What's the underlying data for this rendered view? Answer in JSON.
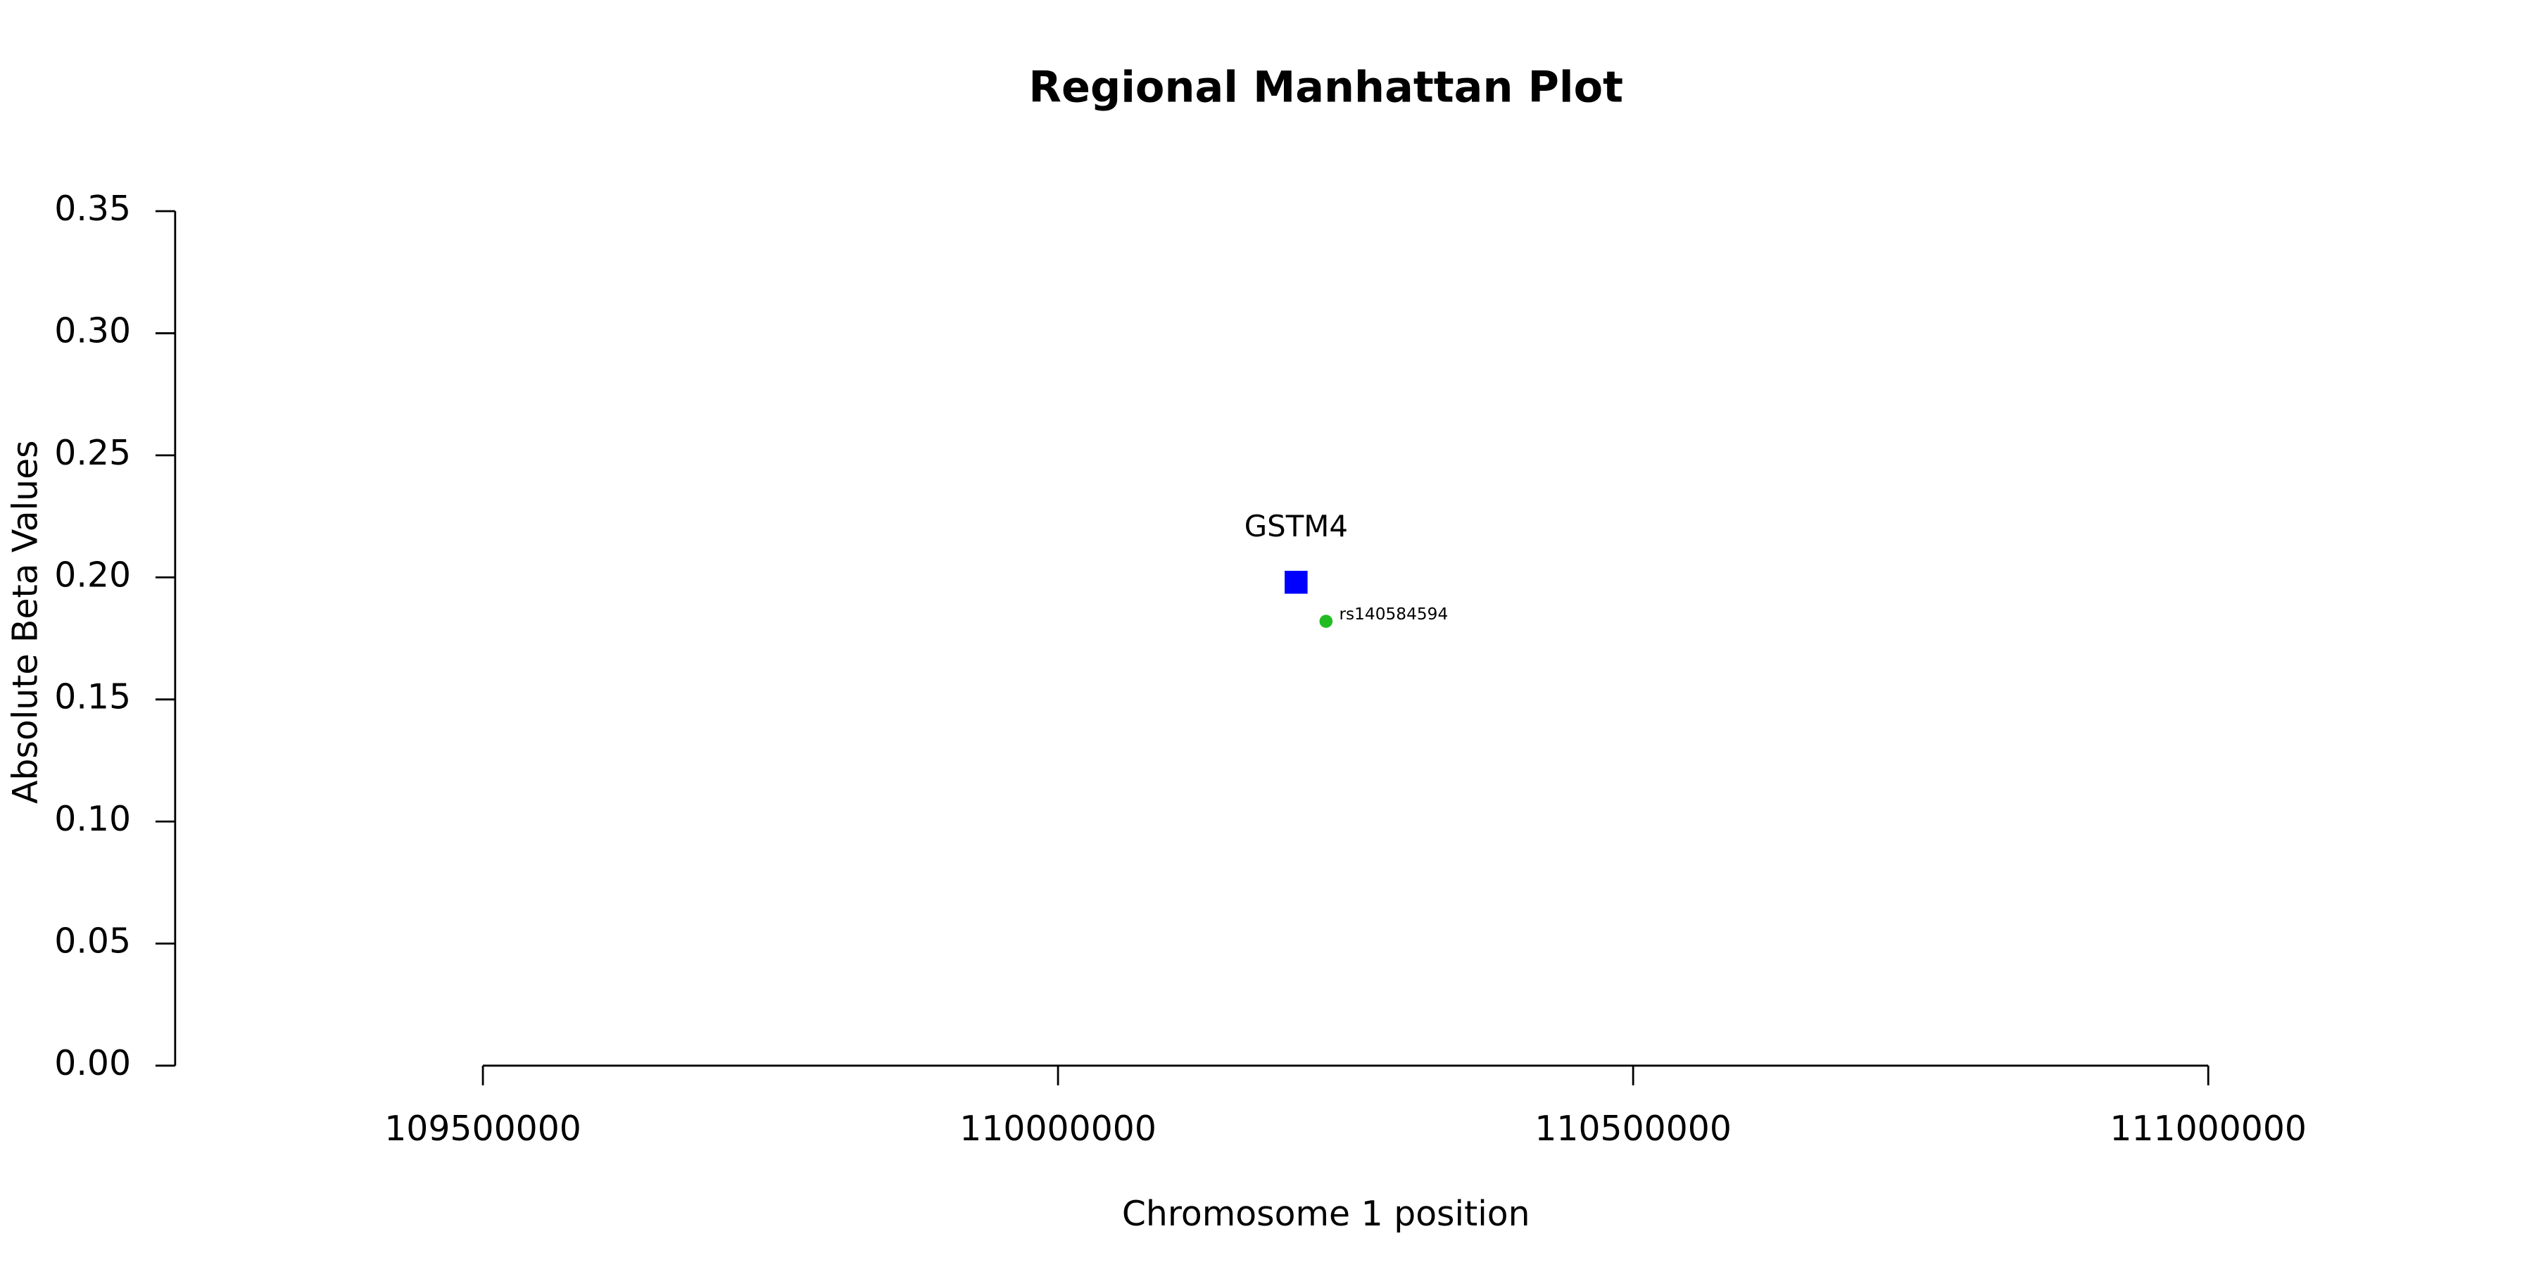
{
  "chart_data": {
    "type": "scatter",
    "title": "Regional Manhattan Plot",
    "x_label": "Chromosome 1 position",
    "y_label": "Absolute Beta Values",
    "xlim": [
      109500000,
      111000000
    ],
    "xticks": [
      109500000,
      110000000,
      110500000,
      111000000
    ],
    "ylim": [
      0,
      0.35
    ],
    "yticks": [
      {
        "value": 0,
        "label": "0.00"
      },
      {
        "value": 0.05,
        "label": "0.05"
      },
      {
        "value": 0.1,
        "label": "0.10"
      },
      {
        "value": 0.15,
        "label": "0.15"
      },
      {
        "value": 0.2,
        "label": "0.20"
      },
      {
        "value": 0.25,
        "label": "0.25"
      },
      {
        "value": 0.3,
        "label": "0.30"
      },
      {
        "value": 0.35,
        "label": "0.35"
      }
    ],
    "points": [
      {
        "label": "GSTM4",
        "x": 110207000,
        "y": 0.198,
        "color": "#0000ff",
        "marker": "square"
      },
      {
        "label": "rs140584594",
        "x": 110233000,
        "y": 0.182,
        "color": "#22bb22",
        "marker": "circle"
      }
    ]
  }
}
